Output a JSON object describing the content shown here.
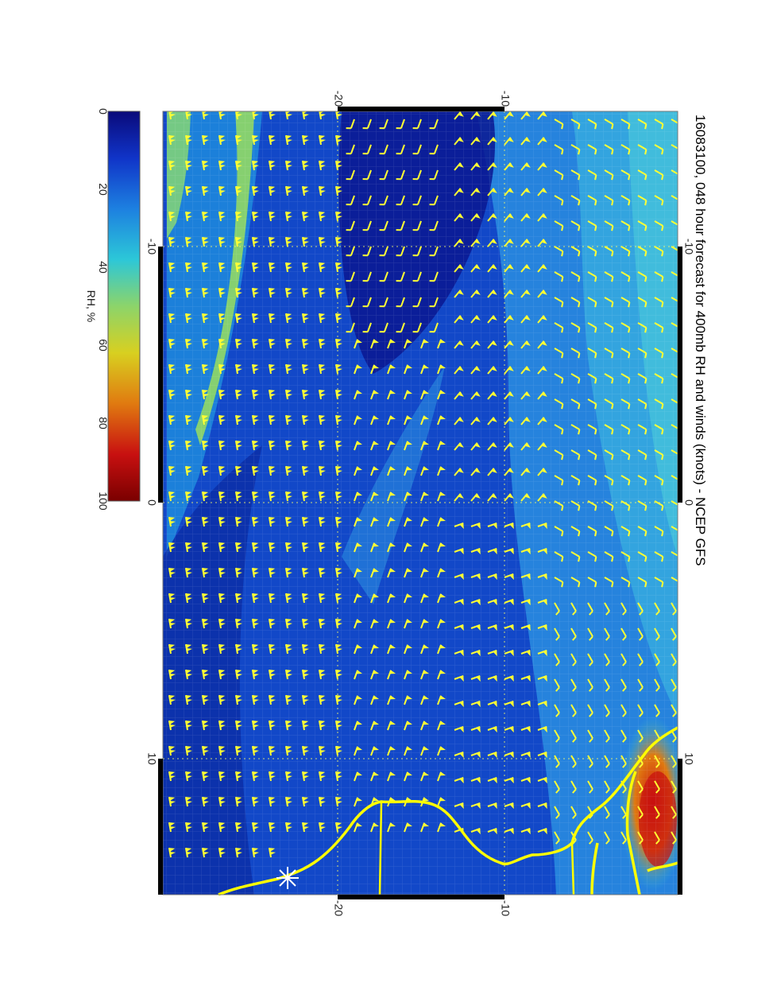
{
  "title": "16083100, 048 hour forecast for 400mb RH and winds (knots) - NCEP GFS",
  "colorbar": {
    "label": "RH, %",
    "ticks": [
      "0",
      "20",
      "40",
      "60",
      "80",
      "100"
    ],
    "colors": [
      "#0a0a7a",
      "#1034c8",
      "#1d80e0",
      "#2cc7d8",
      "#8cd46a",
      "#d8d020",
      "#e07a10",
      "#c81010",
      "#7a0000"
    ]
  },
  "map": {
    "top_ticks": [
      "-20",
      "-10"
    ],
    "bottom_ticks": [
      "-20",
      "-10"
    ],
    "left_ticks": [
      "-10",
      "0",
      "10"
    ],
    "right_ticks": [
      "-10",
      "0",
      "10"
    ],
    "wind_barb_color": "#ffff33",
    "coastline_color": "#ffff00",
    "station_marker": "star-marker"
  }
}
